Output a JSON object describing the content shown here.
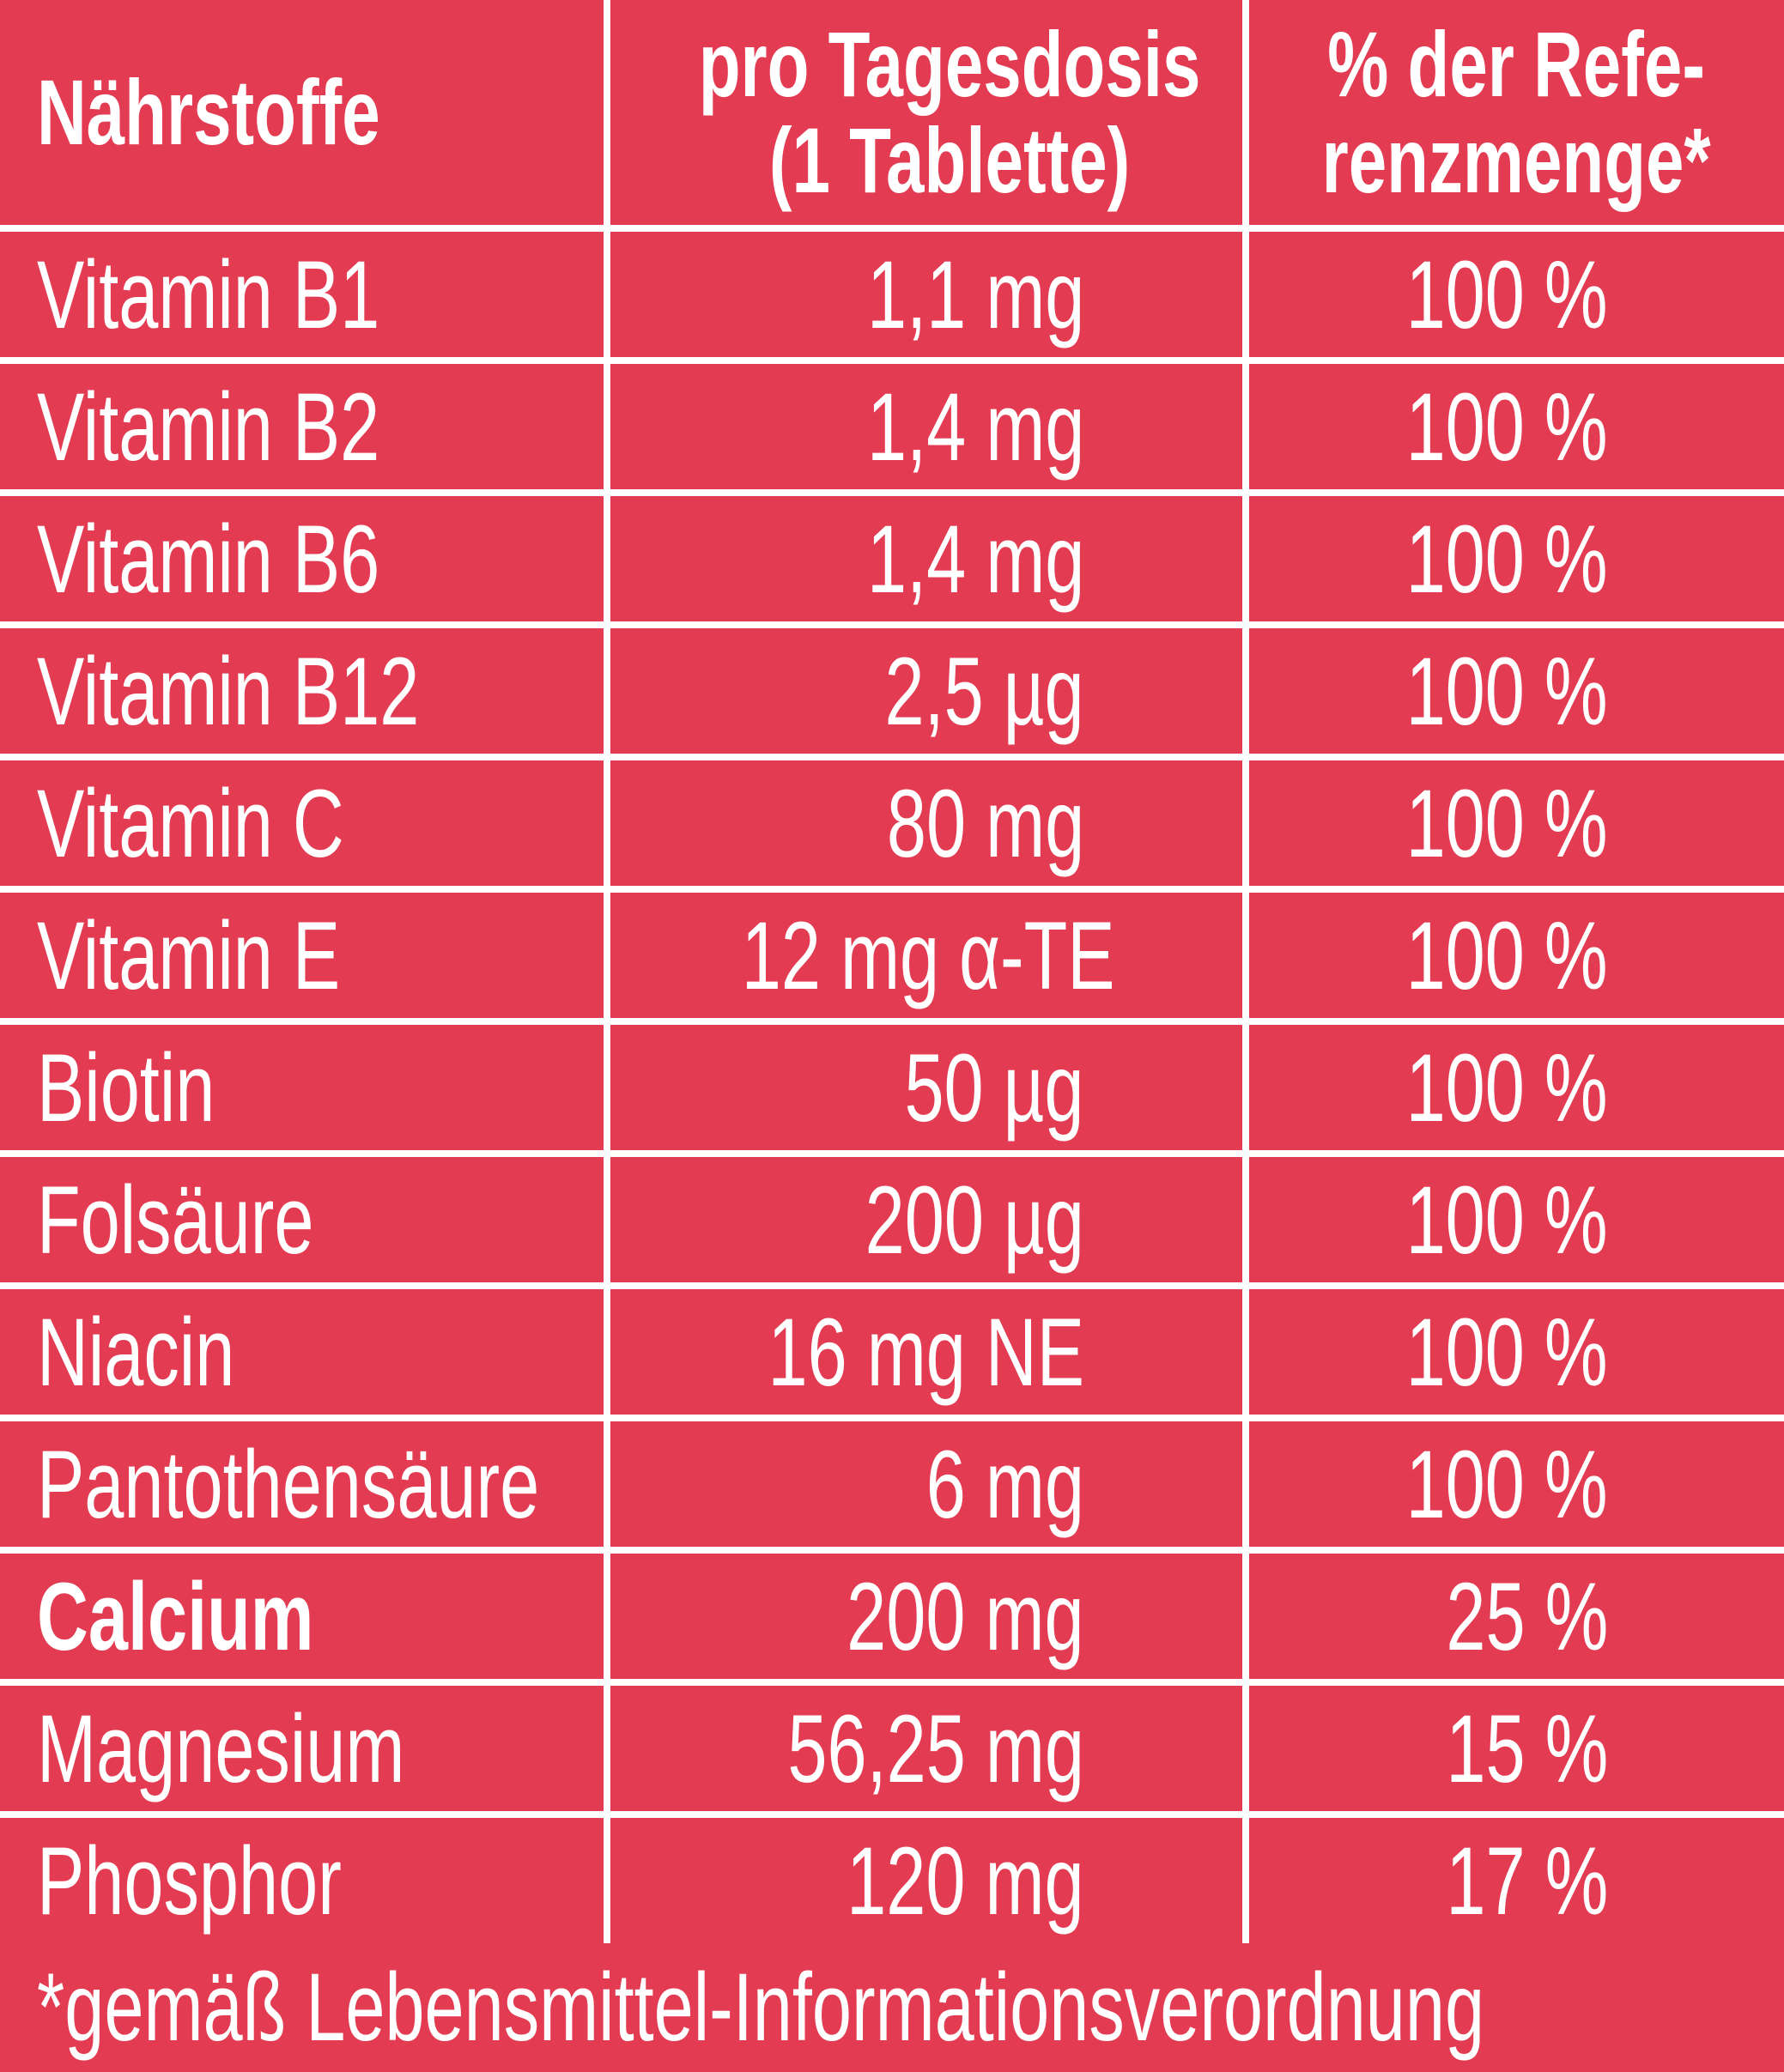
{
  "colors": {
    "background": "#e33c52",
    "text": "#ffffff"
  },
  "header": {
    "nutrients": "Nährstoffe",
    "dose_line1": "pro Tagesdosis",
    "dose_line2": "(1 Tablette)",
    "ref_line1": "% der Refe-",
    "ref_line2": "renzmenge*"
  },
  "rows": [
    {
      "name": "Vitamin B1",
      "dose": "1,1 mg",
      "percent": "100 %"
    },
    {
      "name": "Vitamin B2",
      "dose": "1,4 mg",
      "percent": "100 %"
    },
    {
      "name": "Vitamin B6",
      "dose": "1,4 mg",
      "percent": "100 %"
    },
    {
      "name": "Vitamin B12",
      "dose": "2,5 µg",
      "percent": "100 %"
    },
    {
      "name": "Vitamin C",
      "dose": "80 mg",
      "percent": "100 %"
    },
    {
      "name": "Vitamin E",
      "dose": "12 mg α-TE",
      "percent": "100 %"
    },
    {
      "name": "Biotin",
      "dose": "50 µg",
      "percent": "100 %"
    },
    {
      "name": "Folsäure",
      "dose": "200 µg",
      "percent": "100 %"
    },
    {
      "name": "Niacin",
      "dose": "16 mg NE",
      "percent": "100 %"
    },
    {
      "name": "Pantothensäure",
      "dose": "6 mg",
      "percent": "100 %"
    },
    {
      "name": "Calcium",
      "dose": "200 mg",
      "percent": "25 %"
    },
    {
      "name": "Magnesium",
      "dose": "56,25 mg",
      "percent": "15 %"
    },
    {
      "name": "Phosphor",
      "dose": "120 mg",
      "percent": "17 %"
    }
  ],
  "footnote": "*gemäß Lebensmittel-Informationsverordnung"
}
